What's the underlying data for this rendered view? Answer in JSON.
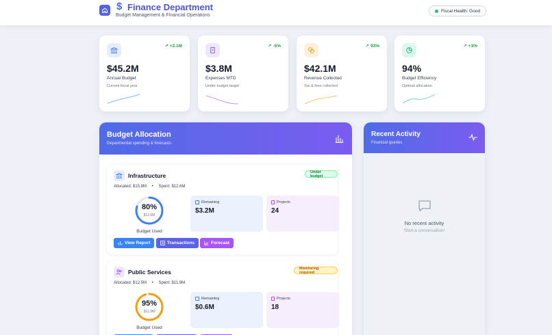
{
  "header": {
    "title": "Finance Department",
    "subtitle": "Budget Management & Financial Operations",
    "dollar_symbol": "$",
    "health": "Fiscal Health: Good"
  },
  "stats": [
    {
      "value": "$45.2M",
      "label": "Annual Budget",
      "sub": "Current fiscal year",
      "trend": "+2.1M",
      "icon": "bank-icon",
      "color": "#3b82f6",
      "bg": "#e6edff"
    },
    {
      "value": "$3.8M",
      "label": "Expenses MTD",
      "sub": "Under budget target",
      "trend": "-5%",
      "icon": "receipt-icon",
      "color": "#8b5cf6",
      "bg": "#efe7fd"
    },
    {
      "value": "$42.1M",
      "label": "Revenue Collected",
      "sub": "Tax & fees collected",
      "trend": "93%",
      "icon": "coins-icon",
      "color": "#f59e0b",
      "bg": "#fdf1dc"
    },
    {
      "value": "94%",
      "label": "Budget Efficiency",
      "sub": "Optimal allocation",
      "trend": "+3%",
      "icon": "pie-chart-icon",
      "color": "#10b981",
      "bg": "#dcf7ec"
    }
  ],
  "budget": {
    "title": "Budget Allocation",
    "subtitle": "Departmental spending & forecasts",
    "departments": [
      {
        "name": "Infrastructure",
        "allocated": "Allocated: $15.8M",
        "spent": "Spent: $12.6M",
        "badge": "Under budget",
        "percent": "80%",
        "percent_value": 80,
        "ring_amount": "$12.6M",
        "ring_caption": "Budget Used",
        "remaining_label": "Remaining",
        "remaining_value": "$3.2M",
        "projects_label": "Projects",
        "projects_value": "24",
        "buttons": [
          "View Report",
          "Transactions",
          "Forecast"
        ]
      },
      {
        "name": "Public Services",
        "allocated": "Allocated: $12.5M",
        "spent": "Spent: $11.9M",
        "badge": "Monitoring required",
        "percent": "95%",
        "percent_value": 95,
        "ring_amount": "$11.9M",
        "ring_caption": "Budget Used",
        "remaining_label": "Remaining",
        "remaining_value": "$0.6M",
        "projects_label": "Projects",
        "projects_value": "18"
      }
    ]
  },
  "activity": {
    "title": "Recent Activity",
    "subtitle": "Financial queries",
    "empty_title": "No recent activity",
    "empty_sub": "Start a conversation!"
  }
}
